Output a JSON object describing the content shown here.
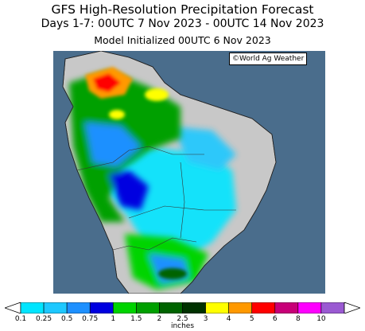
{
  "header": {
    "title": "GFS High-Resolution Precipitation Forecast",
    "subtitle": "Days 1-7: 00UTC 7 Nov 2023 - 00UTC 14 Nov 2023",
    "init": "Model Initialized 00UTC 6 Nov 2023"
  },
  "credit": "©World Ag Weather",
  "legend": {
    "units": "inches",
    "ticks": [
      "0.1",
      "0.25",
      "0.5",
      "0.75",
      "1",
      "1.5",
      "2",
      "2.5",
      "3",
      "4",
      "5",
      "6",
      "8",
      "10"
    ],
    "colors": [
      "#00e5ff",
      "#1ec8ff",
      "#1e90ff",
      "#0000e0",
      "#00d400",
      "#00a000",
      "#006400",
      "#003200",
      "#ffff00",
      "#ff9900",
      "#ff0000",
      "#c80078",
      "#ff00ff",
      "#9a5ad2"
    ],
    "ocean_color": "#4a6d8c",
    "land_color": "#c8c8c8"
  }
}
